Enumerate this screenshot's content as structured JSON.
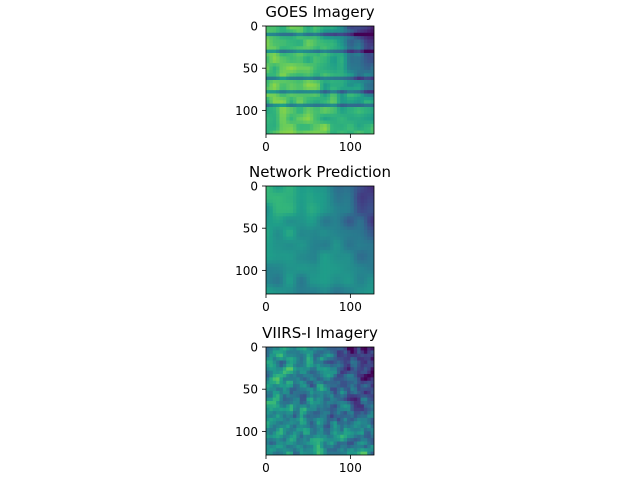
{
  "chart_data": [
    {
      "type": "heatmap",
      "title": "GOES Imagery",
      "colormap": "viridis",
      "x_range": [
        0,
        128
      ],
      "y_range": [
        0,
        128
      ],
      "y_inverted": true,
      "x_ticks": [
        0,
        100
      ],
      "y_ticks": [
        0,
        50,
        100
      ],
      "x_tick_labels": [
        "0",
        "100"
      ],
      "y_tick_labels": [
        "0",
        "50",
        "100"
      ],
      "grid": false
    },
    {
      "type": "heatmap",
      "title": "Network Prediction",
      "colormap": "viridis",
      "x_range": [
        0,
        128
      ],
      "y_range": [
        0,
        128
      ],
      "y_inverted": true,
      "x_ticks": [
        0,
        100
      ],
      "y_ticks": [
        0,
        50,
        100
      ],
      "x_tick_labels": [
        "0",
        "100"
      ],
      "y_tick_labels": [
        "0",
        "50",
        "100"
      ],
      "grid": false
    },
    {
      "type": "heatmap",
      "title": "VIIRS-I Imagery",
      "colormap": "viridis",
      "x_range": [
        0,
        128
      ],
      "y_range": [
        0,
        128
      ],
      "y_inverted": true,
      "x_ticks": [
        0,
        100
      ],
      "y_ticks": [
        0,
        50,
        100
      ],
      "x_tick_labels": [
        "0",
        "100"
      ],
      "y_tick_labels": [
        "0",
        "50",
        "100"
      ],
      "grid": false
    }
  ],
  "colors": {
    "viridis_low": "#440154",
    "viridis_mid": "#21918c",
    "viridis_high": "#fde725",
    "axis": "#000000"
  }
}
